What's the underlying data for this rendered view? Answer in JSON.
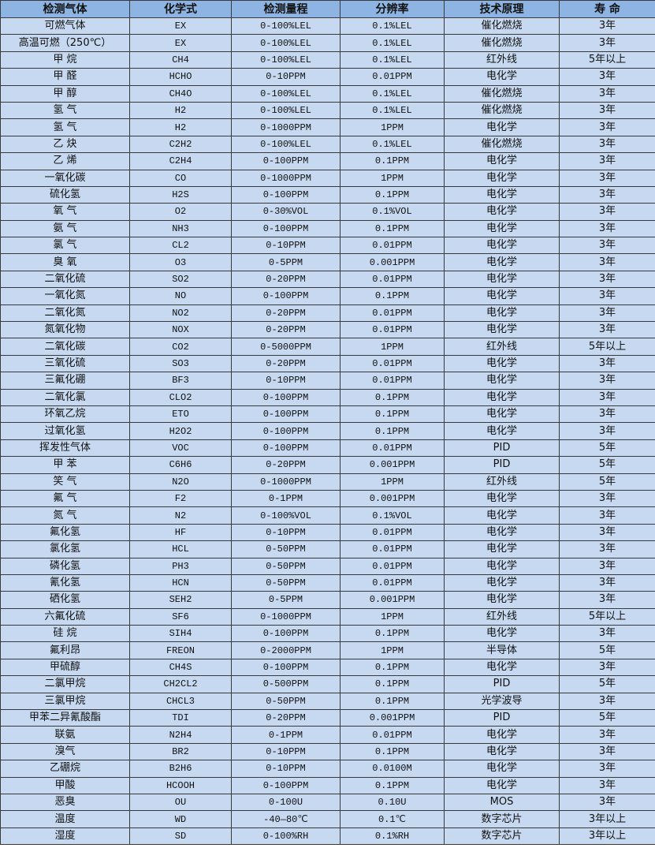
{
  "table": {
    "headers": [
      "检测气体",
      "化学式",
      "检测量程",
      "分辨率",
      "技术原理",
      "寿 命"
    ],
    "rows": [
      [
        "可燃气体",
        "EX",
        "0-100%LEL",
        "0.1%LEL",
        "催化燃烧",
        "3年"
      ],
      [
        "高温可燃（250℃）",
        "EX",
        "0-100%LEL",
        "0.1%LEL",
        "催化燃烧",
        "3年"
      ],
      [
        "甲 烷",
        "CH4",
        "0-100%LEL",
        "0.1%LEL",
        "红外线",
        "5年以上"
      ],
      [
        "甲 醛",
        "HCHO",
        "0-10PPM",
        "0.01PPM",
        "电化学",
        "3年"
      ],
      [
        "甲 醇",
        "CH4O",
        "0-100%LEL",
        "0.1%LEL",
        "催化燃烧",
        "3年"
      ],
      [
        "氢 气",
        "H2",
        "0-100%LEL",
        "0.1%LEL",
        "催化燃烧",
        "3年"
      ],
      [
        "氢 气",
        "H2",
        "0-1000PPM",
        "1PPM",
        "电化学",
        "3年"
      ],
      [
        "乙 炔",
        "C2H2",
        "0-100%LEL",
        "0.1%LEL",
        "催化燃烧",
        "3年"
      ],
      [
        "乙 烯",
        "C2H4",
        "0-100PPM",
        "0.1PPM",
        "电化学",
        "3年"
      ],
      [
        "一氧化碳",
        "CO",
        "0-1000PPM",
        "1PPM",
        "电化学",
        "3年"
      ],
      [
        "硫化氢",
        "H2S",
        "0-100PPM",
        "0.1PPM",
        "电化学",
        "3年"
      ],
      [
        "氧 气",
        "O2",
        "0-30%VOL",
        "0.1%VOL",
        "电化学",
        "3年"
      ],
      [
        "氨 气",
        "NH3",
        "0-100PPM",
        "0.1PPM",
        "电化学",
        "3年"
      ],
      [
        "氯 气",
        "CL2",
        "0-10PPM",
        "0.01PPM",
        "电化学",
        "3年"
      ],
      [
        "臭 氧",
        "O3",
        "0-5PPM",
        "0.001PPM",
        "电化学",
        "3年"
      ],
      [
        "二氧化硫",
        "SO2",
        "0-20PPM",
        "0.01PPM",
        "电化学",
        "3年"
      ],
      [
        "一氧化氮",
        "NO",
        "0-100PPM",
        "0.1PPM",
        "电化学",
        "3年"
      ],
      [
        "二氧化氮",
        "NO2",
        "0-20PPM",
        "0.01PPM",
        "电化学",
        "3年"
      ],
      [
        "氮氧化物",
        "NOX",
        "0-20PPM",
        "0.01PPM",
        "电化学",
        "3年"
      ],
      [
        "二氧化碳",
        "CO2",
        "0-5000PPM",
        "1PPM",
        "红外线",
        "5年以上"
      ],
      [
        "三氧化硫",
        "SO3",
        "0-20PPM",
        "0.01PPM",
        "电化学",
        "3年"
      ],
      [
        "三氟化硼",
        "BF3",
        "0-10PPM",
        "0.01PPM",
        "电化学",
        "3年"
      ],
      [
        "二氧化氯",
        "CLO2",
        "0-100PPM",
        "0.1PPM",
        "电化学",
        "3年"
      ],
      [
        "环氧乙烷",
        "ETO",
        "0-100PPM",
        "0.1PPM",
        "电化学",
        "3年"
      ],
      [
        "过氧化氢",
        "H2O2",
        "0-100PPM",
        "0.1PPM",
        "电化学",
        "3年"
      ],
      [
        "挥发性气体",
        "VOC",
        "0-100PPM",
        "0.01PPM",
        "PID",
        "5年"
      ],
      [
        "甲 苯",
        "C6H6",
        "0-20PPM",
        "0.001PPM",
        "PID",
        "5年"
      ],
      [
        "笑 气",
        "N2O",
        "0-1000PPM",
        "1PPM",
        "红外线",
        "5年"
      ],
      [
        "氟 气",
        "F2",
        "0-1PPM",
        "0.001PPM",
        "电化学",
        "3年"
      ],
      [
        "氮 气",
        "N2",
        "0-100%VOL",
        "0.1%VOL",
        "电化学",
        "3年"
      ],
      [
        "氟化氢",
        "HF",
        "0-10PPM",
        "0.01PPM",
        "电化学",
        "3年"
      ],
      [
        "氯化氢",
        "HCL",
        "0-50PPM",
        "0.01PPM",
        "电化学",
        "3年"
      ],
      [
        "磷化氢",
        "PH3",
        "0-50PPM",
        "0.01PPM",
        "电化学",
        "3年"
      ],
      [
        "氰化氢",
        "HCN",
        "0-50PPM",
        "0.01PPM",
        "电化学",
        "3年"
      ],
      [
        "硒化氢",
        "SEH2",
        "0-5PPM",
        "0.001PPM",
        "电化学",
        "3年"
      ],
      [
        "六氟化硫",
        "SF6",
        "0-1000PPM",
        "1PPM",
        "红外线",
        "5年以上"
      ],
      [
        "硅 烷",
        "SIH4",
        "0-100PPM",
        "0.1PPM",
        "电化学",
        "3年"
      ],
      [
        "氟利昂",
        "FREON",
        "0-2000PPM",
        "1PPM",
        "半导体",
        "5年"
      ],
      [
        "甲硫醇",
        "CH4S",
        "0-100PPM",
        "0.1PPM",
        "电化学",
        "3年"
      ],
      [
        "二氯甲烷",
        "CH2CL2",
        "0-500PPM",
        "0.1PPM",
        "PID",
        "5年"
      ],
      [
        "三氯甲烷",
        "CHCL3",
        "0-50PPM",
        "0.1PPM",
        "光学波导",
        "3年"
      ],
      [
        "甲苯二异氰酸酯",
        "TDI",
        "0-20PPM",
        "0.001PPM",
        "PID",
        "5年"
      ],
      [
        "联氨",
        "N2H4",
        "0-1PPM",
        "0.01PPM",
        "电化学",
        "3年"
      ],
      [
        "溴气",
        "BR2",
        "0-10PPM",
        "0.1PPM",
        "电化学",
        "3年"
      ],
      [
        "乙硼烷",
        "B2H6",
        "0-10PPM",
        "0.0100M",
        "电化学",
        "3年"
      ],
      [
        "甲酸",
        "HCOOH",
        "0-100PPM",
        "0.1PPM",
        "电化学",
        "3年"
      ],
      [
        "恶臭",
        "OU",
        "0-100U",
        "0.10U",
        "MOS",
        "3年"
      ],
      [
        "温度",
        "WD",
        "-40—80℃",
        "0.1℃",
        "数字芯片",
        "3年以上"
      ],
      [
        "湿度",
        "SD",
        "0-100%RH",
        "0.1%RH",
        "数字芯片",
        "3年以上"
      ]
    ]
  }
}
